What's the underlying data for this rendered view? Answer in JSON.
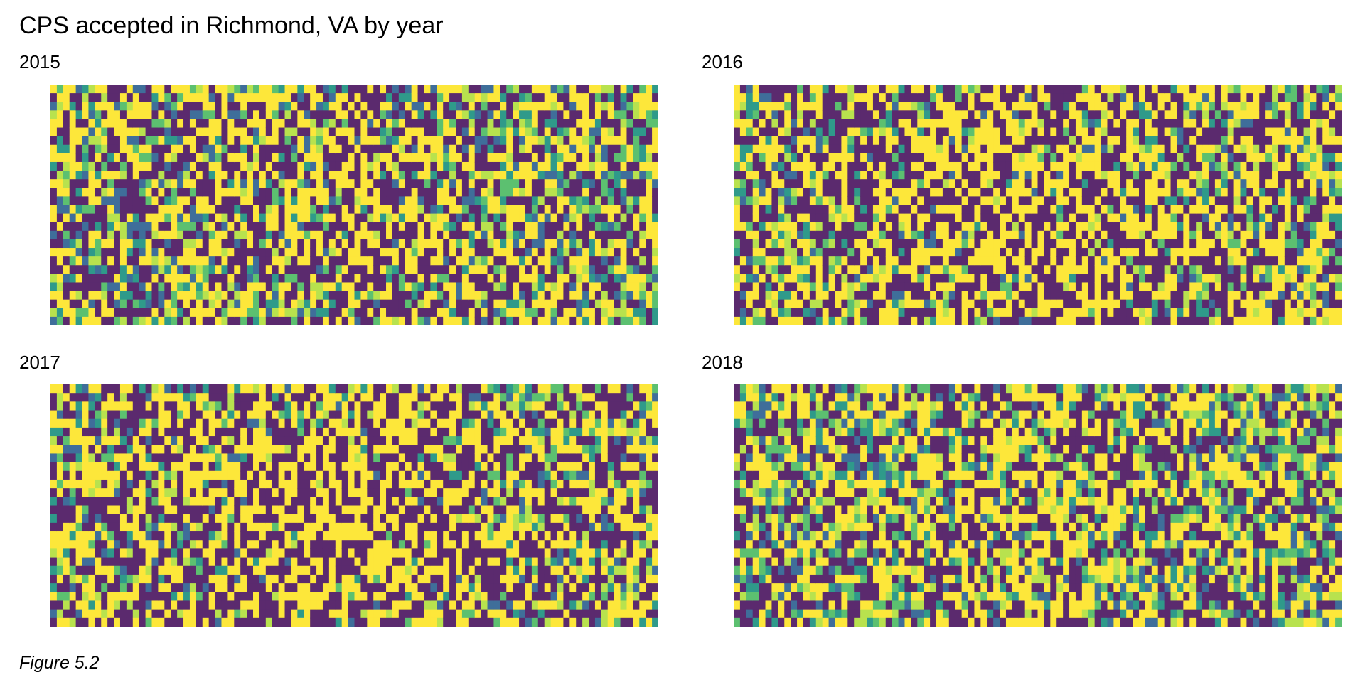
{
  "title": "CPS accepted in Richmond, VA by year",
  "caption": "Figure 5.2",
  "chart_data": {
    "type": "heatmap",
    "title": "CPS accepted in Richmond, VA by year",
    "xlabel": "",
    "ylabel": "",
    "grid": false,
    "legend": "none",
    "color_scale": {
      "name": "viridis",
      "colors": [
        "#5b2a6e",
        "#3f6e9a",
        "#2f9a8a",
        "#5cc070",
        "#b8e24e",
        "#fde73a"
      ]
    },
    "panels": [
      {
        "label": "2015",
        "intensity": 0.42,
        "center_bias": 0.32
      },
      {
        "label": "2016",
        "intensity": 0.52,
        "center_bias": 0.42
      },
      {
        "label": "2017",
        "intensity": 0.55,
        "center_bias": 0.42
      },
      {
        "label": "2018",
        "intensity": 0.42,
        "center_bias": 0.3
      }
    ]
  }
}
